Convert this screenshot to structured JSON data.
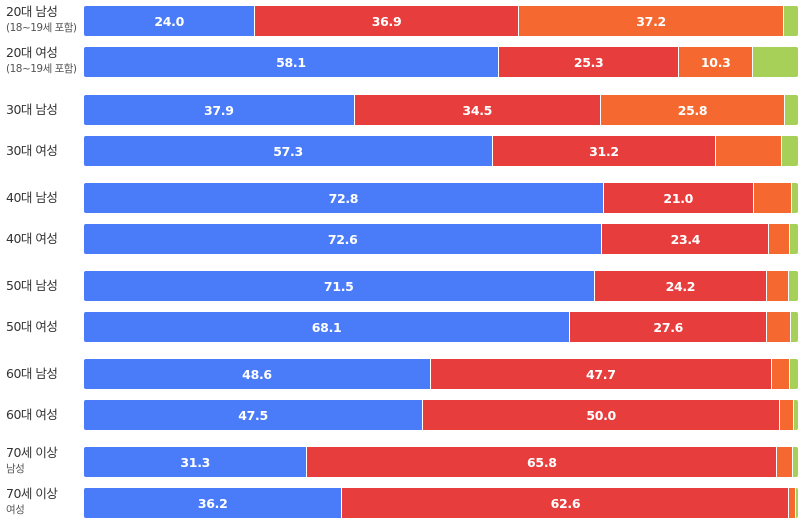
{
  "chart_data": {
    "type": "bar",
    "orientation": "horizontal",
    "stacked": true,
    "xlim": [
      0,
      100
    ],
    "legend_position": "none",
    "series": [
      {
        "name": "series-1",
        "color": "#4a7cfa"
      },
      {
        "name": "series-2",
        "color": "#e83d3d"
      },
      {
        "name": "series-3",
        "color": "#f5682f"
      },
      {
        "name": "series-4",
        "color": "#a6d058"
      }
    ],
    "rows": [
      {
        "label": "20대 남성",
        "sub": "(18~19세 포함)",
        "values": [
          24.0,
          36.9,
          37.2,
          1.9
        ],
        "labels": [
          "24.0",
          "36.9",
          "37.2",
          ""
        ]
      },
      {
        "label": "20대 여성",
        "sub": "(18~19세 포함)",
        "values": [
          58.1,
          25.3,
          10.3,
          6.3
        ],
        "labels": [
          "58.1",
          "25.3",
          "10.3",
          ""
        ]
      },
      {
        "label": "30대 남성",
        "sub": "",
        "values": [
          37.9,
          34.5,
          25.8,
          1.8
        ],
        "labels": [
          "37.9",
          "34.5",
          "25.8",
          ""
        ]
      },
      {
        "label": "30대 여성",
        "sub": "",
        "values": [
          57.3,
          31.2,
          9.3,
          2.2
        ],
        "labels": [
          "57.3",
          "31.2",
          "",
          ""
        ]
      },
      {
        "label": "40대 남성",
        "sub": "",
        "values": [
          72.8,
          21.0,
          5.3,
          0.9
        ],
        "labels": [
          "72.8",
          "21.0",
          "",
          ""
        ]
      },
      {
        "label": "40대 여성",
        "sub": "",
        "values": [
          72.6,
          23.4,
          2.9,
          1.1
        ],
        "labels": [
          "72.6",
          "23.4",
          "",
          ""
        ]
      },
      {
        "label": "50대 남성",
        "sub": "",
        "values": [
          71.5,
          24.2,
          3.1,
          1.2
        ],
        "labels": [
          "71.5",
          "24.2",
          "",
          ""
        ]
      },
      {
        "label": "50대 여성",
        "sub": "",
        "values": [
          68.1,
          27.6,
          3.3,
          1.0
        ],
        "labels": [
          "68.1",
          "27.6",
          "",
          ""
        ]
      },
      {
        "label": "60대 남성",
        "sub": "",
        "values": [
          48.6,
          47.7,
          2.6,
          1.1
        ],
        "labels": [
          "48.6",
          "47.7",
          "",
          ""
        ]
      },
      {
        "label": "60대 여성",
        "sub": "",
        "values": [
          47.5,
          50.0,
          1.9,
          0.6
        ],
        "labels": [
          "47.5",
          "50.0",
          "",
          ""
        ]
      },
      {
        "label": "70세 이상",
        "sub": "남성",
        "values": [
          31.3,
          65.8,
          2.2,
          0.7
        ],
        "labels": [
          "31.3",
          "65.8",
          "",
          ""
        ]
      },
      {
        "label": "70세 이상",
        "sub": "여성",
        "values": [
          36.2,
          62.6,
          0.9,
          0.3
        ],
        "labels": [
          "36.2",
          "62.6",
          "",
          ""
        ]
      }
    ]
  }
}
